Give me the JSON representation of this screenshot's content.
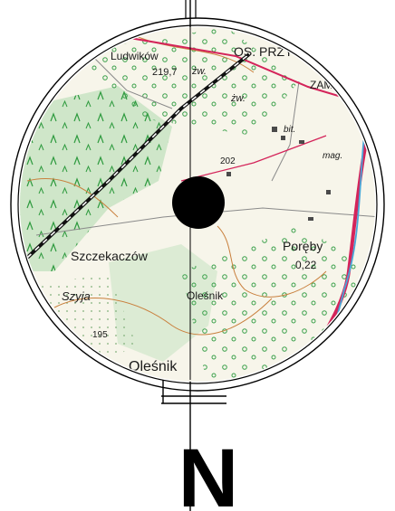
{
  "map": {
    "labels": {
      "ludwikow": "Ludwików",
      "os_przy": "OS. PRZY",
      "elev_219": "219,7",
      "zw1": "żw.",
      "zw2": "żw.",
      "zamos": "ZAMOS",
      "bit": "bit.",
      "mag": "mag.",
      "elev_202": "202",
      "szczekaczow": "Szczekaczów",
      "poreby": "Poręby",
      "poreby_num": "0,22",
      "szyja": "Szyja",
      "olesnik_small": "Oleśnik",
      "elev_195": "195",
      "olesnik_big": "Oleśnik"
    },
    "north_label": "N",
    "colors": {
      "paper": "#f7f5ea",
      "forest": "#cfe6c9",
      "meadow": "#e8f2dc",
      "road_red": "#d4245a",
      "contour": "#c9803e",
      "water": "#4aa6d8",
      "rail": "#111111",
      "green_symbol": "#2e9a3e",
      "center_dot": "#000000"
    }
  }
}
